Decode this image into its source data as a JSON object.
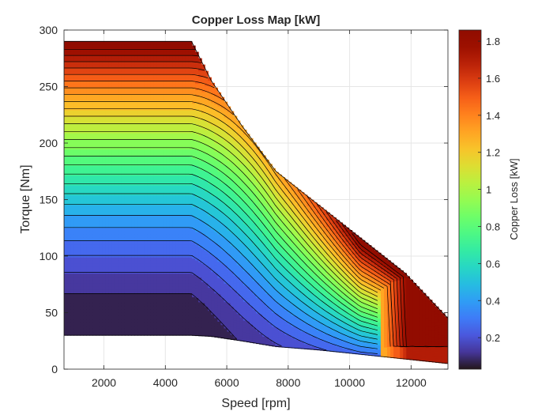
{
  "chart_data": {
    "type": "heatmap",
    "title": "Copper Loss Map [kW]",
    "xlabel": "Speed [rpm]",
    "ylabel": "Torque [Nm]",
    "colorbar_label": "Copper Loss [kW]",
    "xlim": [
      700,
      13200
    ],
    "ylim": [
      0,
      300
    ],
    "clim": [
      0.03,
      1.86
    ],
    "x_ticks": [
      2000,
      4000,
      6000,
      8000,
      10000,
      12000
    ],
    "y_ticks": [
      0,
      50,
      100,
      150,
      200,
      250,
      300
    ],
    "colorbar_ticks": [
      0.2,
      0.4,
      0.6,
      0.8,
      1,
      1.2,
      1.4,
      1.6,
      1.8
    ],
    "grid": true,
    "colormap": "turbo",
    "contour_levels": 28,
    "torque_min": 30,
    "envelope": {
      "speed": [
        700,
        4850,
        5500,
        6500,
        7600,
        9000,
        10400,
        11800,
        13200
      ],
      "max_torque": [
        290,
        290,
        255,
        215,
        175,
        145,
        115,
        85,
        45
      ],
      "min_torque": [
        30,
        30,
        29,
        25,
        20,
        17,
        13,
        9,
        5
      ]
    }
  }
}
